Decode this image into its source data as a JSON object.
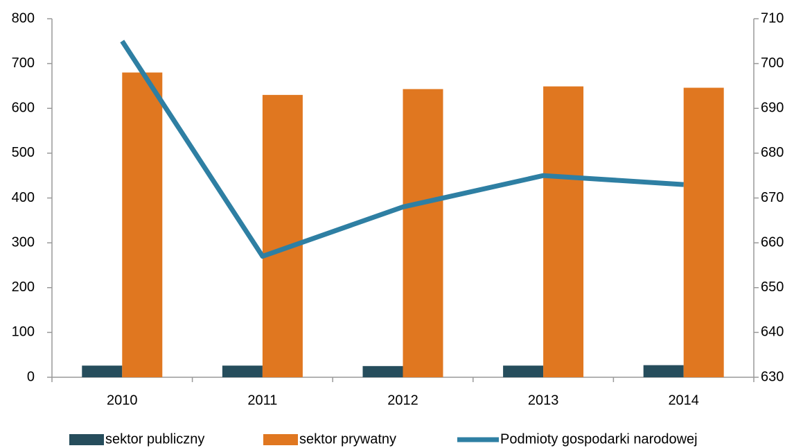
{
  "chart_data": {
    "type": "bar",
    "categories": [
      "2010",
      "2011",
      "2012",
      "2013",
      "2014"
    ],
    "series": [
      {
        "name": "sektor publiczny",
        "color": "#264d5c",
        "values": [
          26,
          26,
          25,
          26,
          27
        ]
      },
      {
        "name": "sektor prywatny",
        "color": "#e07720",
        "values": [
          680,
          630,
          643,
          649,
          646
        ]
      },
      {
        "name": "Podmioty gospodarki narodowej",
        "type": "line",
        "axis": "y2",
        "color": "#2e7fa3",
        "values": [
          705,
          657,
          668,
          675,
          673
        ]
      }
    ],
    "ylim": [
      0,
      800
    ],
    "yticks": [
      0,
      100,
      200,
      300,
      400,
      500,
      600,
      700,
      800
    ],
    "y2lim": [
      630,
      710
    ],
    "y2ticks": [
      630,
      640,
      650,
      660,
      670,
      680,
      690,
      700,
      710
    ],
    "grid": false,
    "legend": "bottom"
  }
}
